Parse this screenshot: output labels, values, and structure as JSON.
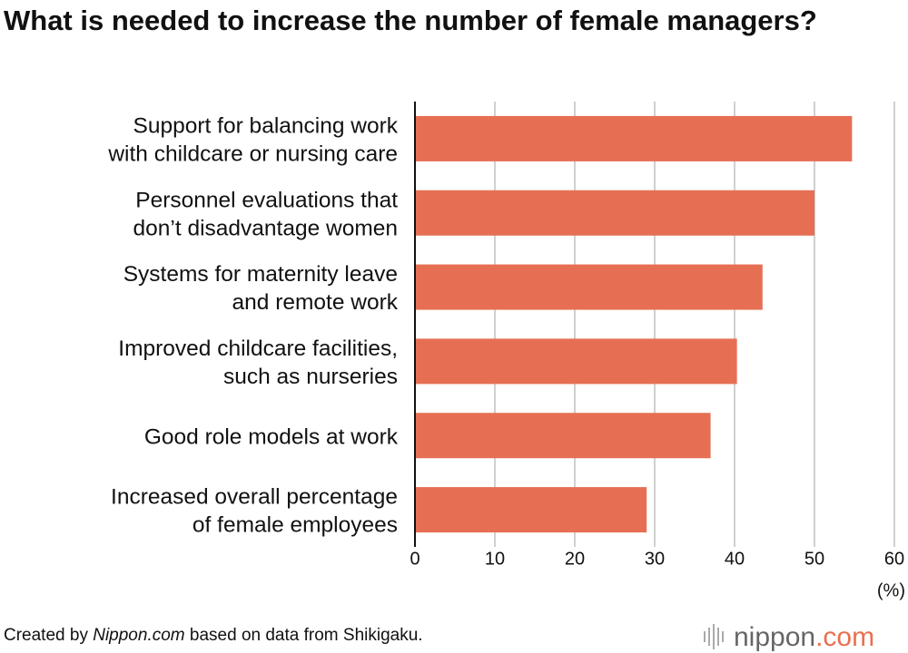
{
  "chart_data": {
    "type": "bar",
    "orientation": "horizontal",
    "title": "What is needed to increase the number of female managers?",
    "categories": [
      [
        "Support for balancing work",
        "with childcare or nursing care"
      ],
      [
        "Personnel evaluations that",
        "don’t disadvantage women"
      ],
      [
        "Systems for maternity leave",
        "and remote work"
      ],
      [
        "Improved childcare facilities,",
        "such as nurseries"
      ],
      [
        "Good role models at work"
      ],
      [
        "Increased overall percentage",
        "of female employees"
      ]
    ],
    "values": [
      54.7,
      50.0,
      43.5,
      40.3,
      37.0,
      29.0
    ],
    "color": "#e66f53",
    "xlim": [
      0,
      60
    ],
    "xticks": [
      0,
      10,
      20,
      30,
      40,
      50,
      60
    ],
    "grid": true,
    "x_unit": "(%)",
    "source": [
      "Created by ",
      "Nippon.com",
      " based on data from Shikigaku."
    ],
    "logo": [
      "nippon",
      ".com"
    ]
  }
}
